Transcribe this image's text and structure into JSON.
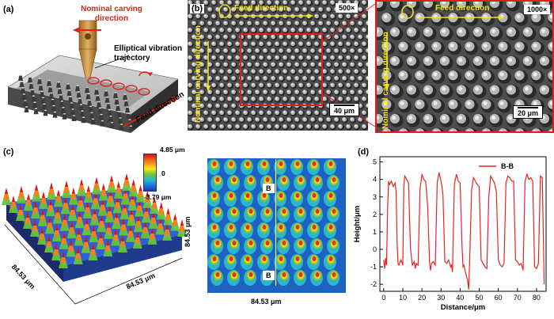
{
  "panel_a": {
    "label": "(a)",
    "nominal_carving": "Nominal carving direction",
    "elliptical": "Elliptical vibration trajectory",
    "feed": "Feed direction"
  },
  "panel_b": {
    "label": "(b)",
    "feed": "Feed direction",
    "nominal": "Nominal carving direction",
    "mag_left": "500×",
    "mag_right": "1000×",
    "scale_left": "40 μm",
    "scale_right": "20 μm",
    "feed_right": "Feed direction",
    "nominal_right": "Nominal carving direction"
  },
  "panel_c": {
    "label": "(c)",
    "cbar_max": "4.85 μm",
    "cbar_mid": "0",
    "cbar_min": "-3.79 μm",
    "axis_x": "84.53 μm",
    "axis_y": "84.53 μm",
    "map_y": "84.53 μm",
    "map_x": "84.53 μm",
    "marker_top": "B",
    "marker_bottom": "B"
  },
  "chart_data": {
    "type": "line",
    "title": "",
    "label": "(d)",
    "xlabel": "Distance/μm",
    "ylabel": "Height/μm",
    "xlim": [
      -2,
      85
    ],
    "ylim": [
      -2.4,
      5.3
    ],
    "xticks": [
      "0",
      "10",
      "20",
      "30",
      "40",
      "50",
      "60",
      "70",
      "80"
    ],
    "yticks": [
      "5",
      "4",
      "3",
      "2",
      "1",
      "0",
      "-1",
      "-2"
    ],
    "legend_position": "top-right",
    "series": [
      {
        "name": "B-B",
        "color": "#e8231f",
        "x": [
          0,
          0.5,
          1,
          1.5,
          2,
          2.5,
          3,
          4,
          5,
          6,
          6.5,
          7,
          7.5,
          8,
          9,
          10,
          10.5,
          11,
          12,
          13,
          14,
          15,
          16,
          16.5,
          17,
          18,
          19,
          20,
          21,
          22,
          23,
          24,
          24.5,
          25,
          26,
          27,
          28,
          29,
          30,
          30.5,
          31,
          32,
          33,
          34,
          35,
          35.5,
          36,
          37,
          38,
          39,
          40,
          41,
          41.5,
          42,
          43,
          44,
          44.5,
          45,
          46,
          47,
          48,
          49,
          50,
          51,
          52,
          53,
          54,
          55,
          56,
          57,
          58,
          59,
          60,
          61,
          62,
          63,
          64,
          65,
          66,
          67,
          68,
          69,
          70,
          71,
          72,
          73,
          74,
          75,
          76,
          77,
          78,
          79,
          80,
          81,
          82,
          83,
          84
        ],
        "y": [
          -0.6,
          -1.1,
          -0.5,
          -0.9,
          2.2,
          3.9,
          3.7,
          3.9,
          3.6,
          3.8,
          3.3,
          0.5,
          -0.8,
          -0.9,
          -0.6,
          -0.9,
          3.6,
          4.2,
          4.0,
          3.8,
          0.1,
          -0.9,
          -0.7,
          -1.1,
          -0.8,
          -0.9,
          3.4,
          4.3,
          4.0,
          3.9,
          2.5,
          -0.8,
          -1.2,
          -0.8,
          -0.7,
          -0.9,
          3.8,
          4.4,
          3.9,
          3.6,
          3.1,
          -0.7,
          -0.8,
          -0.6,
          -1.0,
          -0.9,
          -1.3,
          3.7,
          4.3,
          3.9,
          3.8,
          0.2,
          -1.0,
          -0.9,
          -1.4,
          -1.8,
          -2.3,
          -0.7,
          3.4,
          4.1,
          3.9,
          3.7,
          3.6,
          -0.6,
          -0.8,
          -1.0,
          -1.1,
          3.0,
          4.2,
          4.0,
          3.8,
          3.3,
          -0.6,
          -0.9,
          -1.0,
          -0.8,
          3.8,
          4.2,
          4.1,
          3.9,
          3.9,
          -0.6,
          -0.7,
          -0.9,
          -0.8,
          -1.2,
          3.9,
          4.3,
          4.0,
          4.1,
          3.9,
          -1.0,
          -1.1,
          -0.8,
          4.2,
          4.1,
          -2.0
        ]
      }
    ]
  }
}
